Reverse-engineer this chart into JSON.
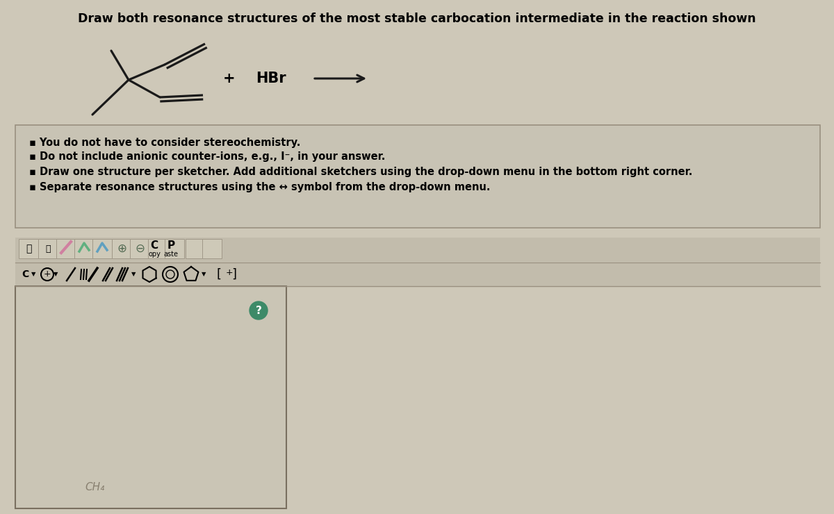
{
  "bg_color": "#cec8b8",
  "title": "Draw both resonance structures of the most stable carbocation intermediate in the reaction shown",
  "title_fontsize": 12.5,
  "bullet_points": [
    "You do not have to consider stereochemistry.",
    "Do not include anionic counter-ions, e.g., I⁻, in your answer.",
    "Draw one structure per sketcher. Add additional sketchers using the drop-down menu in the bottom right corner.",
    "Separate resonance structures using the ↔ symbol from the drop-down menu."
  ],
  "bullet_fontsize": 10.5,
  "hbr_text": "HBr",
  "plus_text": "+",
  "box_facecolor": "#c8c3b4",
  "box_edgecolor": "#9a9080",
  "sketcher_facecolor": "#cac5b5",
  "sketcher_edgecolor": "#7a7060",
  "toolbar_facecolor": "#c2bcac",
  "ch4_text": "CH₄",
  "question_mark_bg": "#3d8a68",
  "mol_color": "#1a1a1a",
  "arrow_color": "#1a1a1a"
}
